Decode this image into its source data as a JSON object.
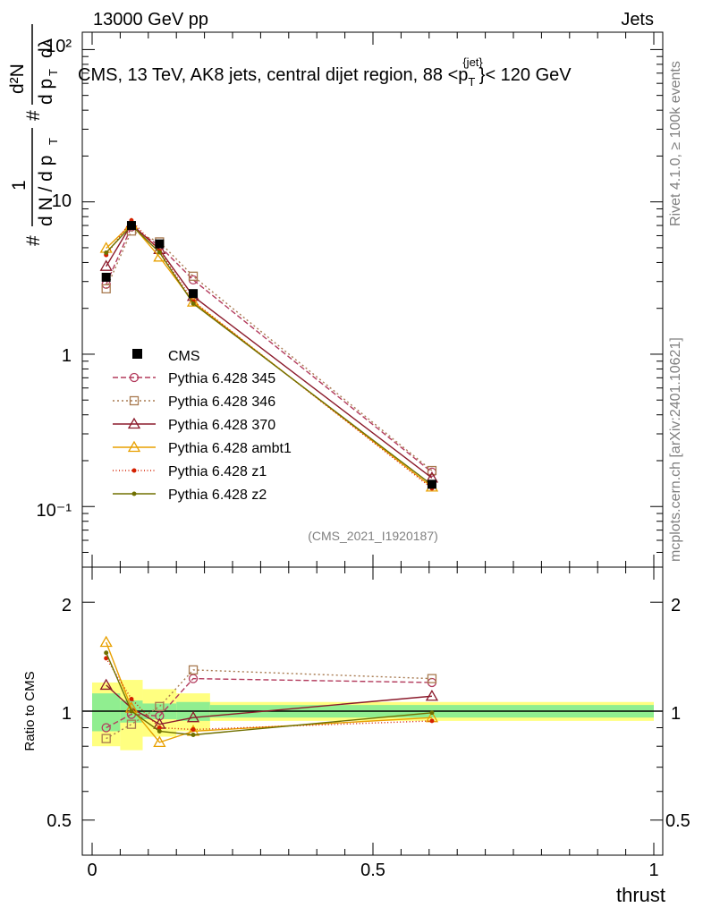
{
  "header": {
    "left": "13000 GeV pp",
    "right": "Jets"
  },
  "side": {
    "rivet": "Rivet 4.1.0, ≥ 100k events",
    "mcplots": "mcplots.cern.ch [arXiv:2401.10621]"
  },
  "chart_data": {
    "type": "line",
    "title": "CMS, 13 TeV, AK8 jets, central dijet region, 88 <p_T^{jet}< 120 GeV",
    "title_parts": {
      "main": "CMS, 13 TeV, AK8 jets, central dijet region, 88 <p",
      "sub": "T",
      "sup": "{jet}",
      "tail": "}< 120 GeV"
    },
    "ylabel": "1/dN/dp_T # d²N/dp_T dλ",
    "ylabel_parts": {
      "hash1": "#",
      "one": "1",
      "dN": "d N / d p",
      "T": "T",
      "hash2": "#",
      "numer": "d²N",
      "denom": "d p",
      "dl": "dλ"
    },
    "xlabel": "thrust",
    "watermark": "(CMS_2021_I1920187)",
    "ratio_ylabel": "Ratio to CMS",
    "xlim": [
      0,
      1
    ],
    "ylim": [
      0.04,
      130
    ],
    "ratio_ylim": [
      0.4,
      2.5
    ],
    "x_ticks": [
      "0",
      "0.5",
      "1"
    ],
    "y_ticks": [
      "10⁻¹",
      "1",
      "10",
      "10²"
    ],
    "ratio_ticks": [
      "0.5",
      "1",
      "2"
    ],
    "bins": [
      [
        0,
        0.05
      ],
      [
        0.05,
        0.09
      ],
      [
        0.09,
        0.15
      ],
      [
        0.15,
        0.21
      ],
      [
        0.21,
        1.0
      ]
    ],
    "x": [
      0.025,
      0.07,
      0.12,
      0.18,
      0.605
    ],
    "data": {
      "name": "CMS",
      "values": [
        3.2,
        7.0,
        5.3,
        2.5,
        0.14
      ],
      "band_stat": [
        0.12,
        0.07,
        0.05,
        0.06,
        0.04
      ],
      "band_tot": [
        0.2,
        0.22,
        0.15,
        0.12,
        0.06
      ]
    },
    "series": [
      {
        "name": "Pythia 6.428 345",
        "color": "#b33b5d",
        "dash": "6,3",
        "marker": "circle",
        "ratio": [
          0.9,
          0.98,
          0.97,
          1.23,
          1.2
        ]
      },
      {
        "name": "Pythia 6.428 346",
        "color": "#a87a50",
        "dash": "2,3",
        "marker": "square",
        "ratio": [
          0.84,
          0.92,
          1.03,
          1.3,
          1.23
        ]
      },
      {
        "name": "Pythia 6.428 370",
        "color": "#8b1a2b",
        "dash": "",
        "marker": "triangle",
        "ratio": [
          1.18,
          1.02,
          0.92,
          0.96,
          1.1
        ]
      },
      {
        "name": "Pythia 6.428 ambt1",
        "color": "#e8a000",
        "dash": "",
        "marker": "triangle",
        "ratio": [
          1.55,
          1.02,
          0.82,
          0.88,
          0.96
        ]
      },
      {
        "name": "Pythia 6.428 z1",
        "color": "#d42000",
        "dash": "1,2.5",
        "marker": "dot",
        "ratio": [
          1.4,
          1.08,
          0.9,
          0.89,
          0.94
        ]
      },
      {
        "name": "Pythia 6.428 z2",
        "color": "#707000",
        "dash": "",
        "marker": "dot",
        "ratio": [
          1.45,
          1.0,
          0.88,
          0.86,
          0.99
        ]
      }
    ]
  }
}
